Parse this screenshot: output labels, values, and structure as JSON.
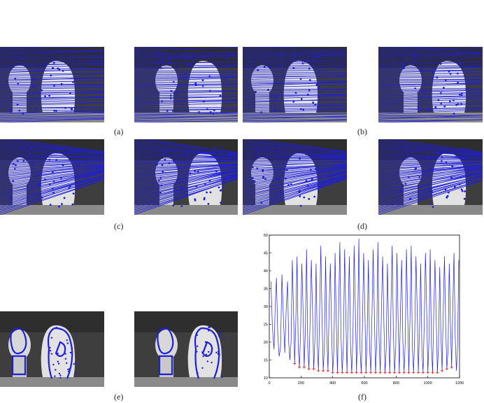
{
  "captions": {
    "a": "(a)",
    "b": "(b)",
    "c": "(c)",
    "d": "(d)",
    "e": "(e)",
    "f": "(f)"
  },
  "colors": {
    "line": "#1f1fd8",
    "marker": "#e03030",
    "bg": "#4a4a4a",
    "statue": "#d8d8d8"
  },
  "chart_data": {
    "type": "line",
    "xlim": [
      0,
      1200
    ],
    "ylim": [
      10,
      50
    ],
    "x_ticks": [
      0,
      200,
      400,
      600,
      800,
      1000,
      1200
    ],
    "y_ticks": [
      10,
      15,
      20,
      25,
      30,
      35,
      40,
      45,
      50
    ],
    "series": [
      {
        "peaks_x": [
          10,
          45,
          80,
          115,
          145,
          175,
          205,
          235,
          265,
          295,
          325,
          355,
          385,
          415,
          445,
          475,
          505,
          535,
          565,
          595,
          625,
          655,
          685,
          715,
          745,
          775,
          805,
          835,
          865,
          895,
          925,
          955,
          985,
          1015,
          1045,
          1075,
          1105,
          1135,
          1165,
          1195
        ],
        "peaks_y": [
          37,
          38,
          39,
          37,
          43,
          44,
          42,
          46,
          43,
          42,
          47,
          44,
          42,
          45,
          48,
          46,
          44,
          47,
          49,
          45,
          43,
          46,
          48,
          44,
          42,
          47,
          45,
          43,
          46,
          47,
          44,
          42,
          45,
          46,
          43,
          41,
          44,
          42,
          45,
          43
        ],
        "troughs_x": [
          30,
          62,
          98,
          130,
          160,
          190,
          220,
          250,
          280,
          310,
          340,
          370,
          400,
          430,
          460,
          490,
          520,
          550,
          580,
          610,
          640,
          670,
          700,
          730,
          760,
          790,
          820,
          850,
          880,
          910,
          940,
          970,
          1000,
          1030,
          1060,
          1090,
          1120,
          1150,
          1180
        ],
        "troughs_y": [
          18,
          16,
          17,
          15,
          14,
          13,
          13,
          12.5,
          12.5,
          12,
          12,
          12,
          11.5,
          11.5,
          11.5,
          11.5,
          11.5,
          11.5,
          11.5,
          11.5,
          11.5,
          11.5,
          11.5,
          11.5,
          11.5,
          11.5,
          11.5,
          11.5,
          11.5,
          11.5,
          11.5,
          11.5,
          11.5,
          11.5,
          11.5,
          12,
          12.5,
          13,
          12
        ]
      }
    ],
    "markers_x": [
      160,
      190,
      220,
      250,
      280,
      310,
      340,
      370,
      400,
      430,
      460,
      490,
      520,
      550,
      580,
      610,
      640,
      670,
      700,
      730,
      760,
      790,
      820,
      850,
      880,
      910,
      940,
      970,
      1000,
      1030,
      1060,
      1090,
      1120,
      1150
    ],
    "markers_y": [
      14,
      13,
      13,
      12.5,
      12.5,
      12,
      12,
      12,
      11.5,
      11.5,
      11.5,
      11.5,
      11.5,
      11.5,
      11.5,
      11.5,
      11.5,
      11.5,
      11.5,
      11.5,
      11.5,
      11.5,
      11.5,
      11.5,
      11.5,
      11.5,
      11.5,
      11.5,
      11.5,
      11.5,
      11.5,
      12,
      12.5,
      13
    ]
  }
}
